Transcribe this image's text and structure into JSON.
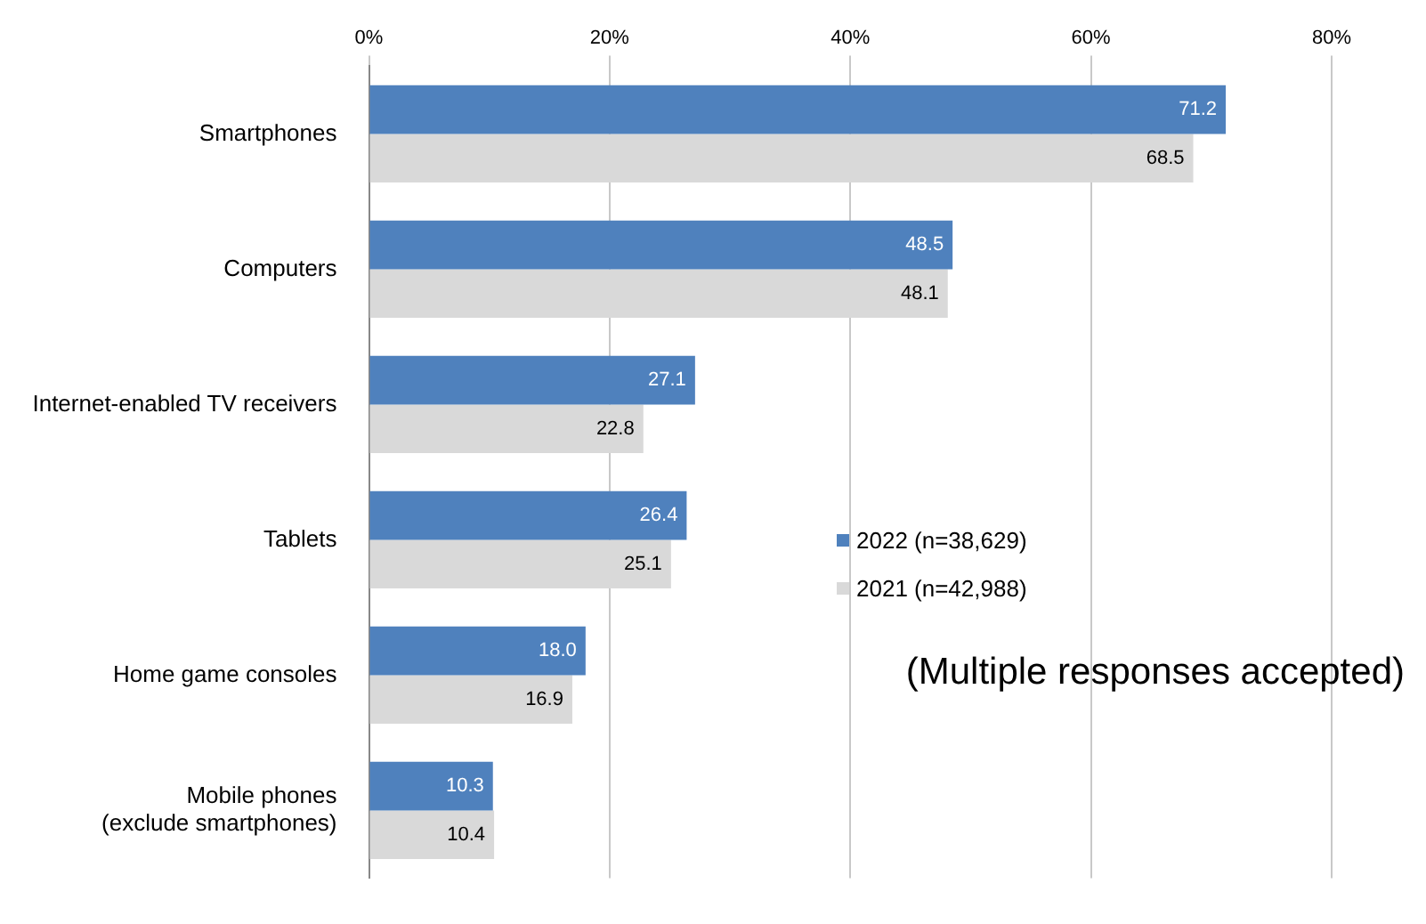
{
  "chart_data": {
    "type": "bar",
    "orientation": "horizontal",
    "categories": [
      "Smartphones",
      "Computers",
      "Internet-enabled TV receivers",
      "Tablets",
      "Home game consoles",
      "Mobile phones (exclude smartphones)"
    ],
    "series": [
      {
        "name": "2022 (n=38,629)",
        "color": "#4f81bd",
        "values": [
          71.2,
          48.5,
          27.1,
          26.4,
          18.0,
          10.3
        ],
        "value_labels": [
          "71.2",
          "48.5",
          "27.1",
          "26.4",
          "18.0",
          "10.3"
        ]
      },
      {
        "name": "2021 (n=42,988)",
        "color": "#d9d9d9",
        "values": [
          68.5,
          48.1,
          22.8,
          25.1,
          16.9,
          10.4
        ],
        "value_labels": [
          "68.5",
          "48.1",
          "22.8",
          "25.1",
          "16.9",
          "10.4"
        ]
      }
    ],
    "xlim": [
      0,
      80
    ],
    "xticks": [
      {
        "value": 0,
        "label": "0%"
      },
      {
        "value": 20,
        "label": "20%"
      },
      {
        "value": 40,
        "label": "40%"
      },
      {
        "value": 60,
        "label": "60%"
      },
      {
        "value": 80,
        "label": "80%"
      }
    ],
    "grid": "x",
    "legend": "right",
    "annotations": [
      "(Multiple responses accepted)"
    ]
  }
}
